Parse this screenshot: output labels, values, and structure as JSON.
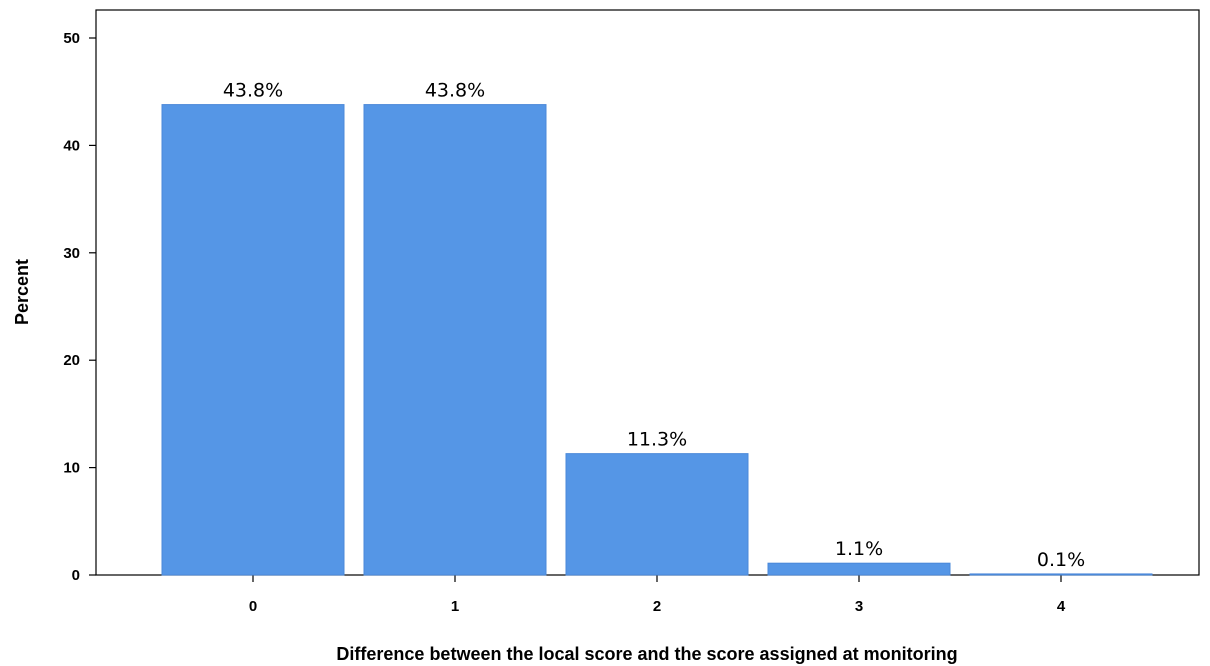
{
  "chart_data": {
    "type": "bar",
    "categories": [
      "0",
      "1",
      "2",
      "3",
      "4"
    ],
    "values": [
      43.8,
      43.8,
      11.3,
      1.1,
      0.1
    ],
    "data_labels": [
      "43.8%",
      "43.8%",
      "11.3%",
      "1.1%",
      "0.1%"
    ],
    "title": "",
    "xlabel": "Difference between the local score and the score assigned at monitoring",
    "ylabel": "Percent",
    "ylim": [
      0,
      50
    ],
    "y_ticks": [
      "0",
      "10",
      "20",
      "30",
      "40",
      "50"
    ],
    "grid": false,
    "colors": {
      "bar_fill": "#5596E6",
      "bar_stroke": "#4A88D9",
      "axis": "#000000",
      "frame": "#000000"
    }
  }
}
